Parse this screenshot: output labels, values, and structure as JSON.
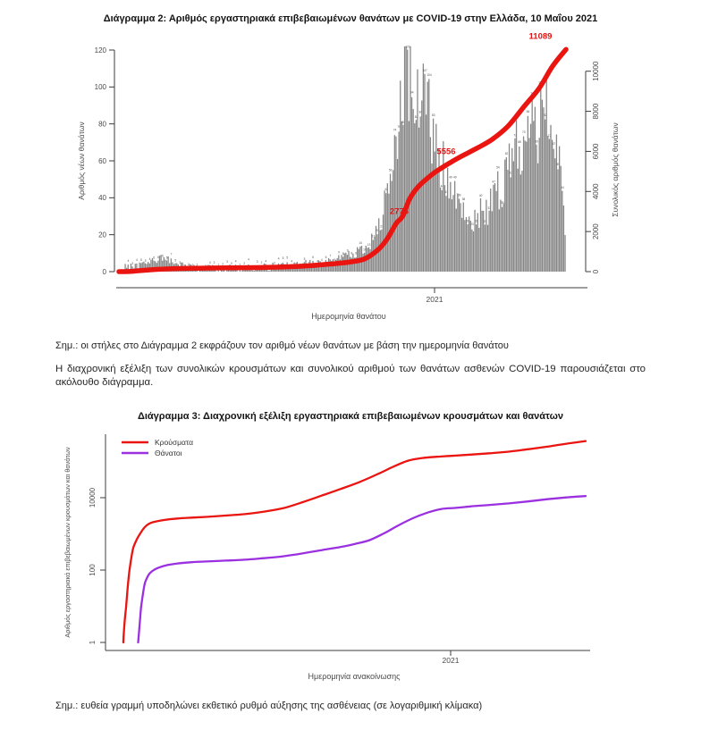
{
  "chart2": {
    "title": "Διάγραμμα 2: Αριθμός εργαστηριακά επιβεβαιωμένων θανάτων με COVID-19 στην Ελλάδα, 10 Μαΐου 2021",
    "left_axis": {
      "label": "Αριθμός νέων θανάτων",
      "ticks": [
        0,
        20,
        40,
        60,
        80,
        100,
        120
      ]
    },
    "right_axis": {
      "label": "Συνολικός αριθμός θανάτων",
      "ticks": [
        0,
        2000,
        4000,
        6000,
        8000,
        10000
      ]
    },
    "x_axis": {
      "label": "Ημερομηνία θανάτου",
      "tick_label": "2021"
    },
    "colors": {
      "bar": "#868686",
      "bar_label": "#4d4d4d",
      "line": "#ea1410",
      "annotation": "#e41312",
      "axis": "#3c3c3c",
      "tick_text": "#4a4a4a"
    },
    "chart_data": {
      "type": "bar+line",
      "x_range": "Μάρτιος 2020 – 10 Μαΐου 2021 (ανά ημέρα)",
      "bar_series": {
        "name": "Νέοι θάνατοι ανά ημερομηνία θανάτου",
        "axis": "left",
        "ylim": [
          0,
          120
        ],
        "bar_count": 312,
        "profile": [
          [
            0,
            1.5
          ],
          [
            0.04,
            3
          ],
          [
            0.07,
            6
          ],
          [
            0.1,
            7.5
          ],
          [
            0.13,
            4
          ],
          [
            0.17,
            2
          ],
          [
            0.22,
            1.5
          ],
          [
            0.28,
            2
          ],
          [
            0.33,
            2.5
          ],
          [
            0.38,
            3.5
          ],
          [
            0.43,
            4.5
          ],
          [
            0.48,
            6
          ],
          [
            0.52,
            9
          ],
          [
            0.55,
            13
          ],
          [
            0.58,
            22
          ],
          [
            0.6,
            38
          ],
          [
            0.62,
            70
          ],
          [
            0.63,
            85
          ],
          [
            0.64,
            108
          ],
          [
            0.65,
            112
          ],
          [
            0.66,
            100
          ],
          [
            0.67,
            88
          ],
          [
            0.68,
            92
          ],
          [
            0.69,
            84
          ],
          [
            0.7,
            76
          ],
          [
            0.72,
            62
          ],
          [
            0.74,
            48
          ],
          [
            0.76,
            35
          ],
          [
            0.78,
            28
          ],
          [
            0.8,
            27
          ],
          [
            0.82,
            30
          ],
          [
            0.84,
            38
          ],
          [
            0.86,
            48
          ],
          [
            0.88,
            58
          ],
          [
            0.9,
            68
          ],
          [
            0.92,
            75
          ],
          [
            0.94,
            80
          ],
          [
            0.955,
            85
          ],
          [
            0.97,
            78
          ],
          [
            0.985,
            66
          ],
          [
            0.995,
            38
          ],
          [
            1,
            18
          ]
        ]
      },
      "line_series": {
        "name": "Συνολικός αριθμός θανάτων",
        "axis": "right",
        "ylim": [
          0,
          11089
        ],
        "points": [
          [
            0,
            0
          ],
          [
            0.02,
            5
          ],
          [
            0.05,
            55
          ],
          [
            0.08,
            105
          ],
          [
            0.1,
            130
          ],
          [
            0.12,
            144
          ],
          [
            0.16,
            165
          ],
          [
            0.2,
            180
          ],
          [
            0.26,
            192
          ],
          [
            0.33,
            208
          ],
          [
            0.41,
            270
          ],
          [
            0.48,
            392
          ],
          [
            0.52,
            490
          ],
          [
            0.55,
            640
          ],
          [
            0.58,
            1100
          ],
          [
            0.6,
            1630
          ],
          [
            0.62,
            2400
          ],
          [
            0.635,
            2776
          ],
          [
            0.65,
            3620
          ],
          [
            0.67,
            4250
          ],
          [
            0.7,
            4840
          ],
          [
            0.72,
            5150
          ],
          [
            0.75,
            5556
          ],
          [
            0.77,
            5800
          ],
          [
            0.8,
            6150
          ],
          [
            0.835,
            6600
          ],
          [
            0.87,
            7250
          ],
          [
            0.906,
            8230
          ],
          [
            0.94,
            9150
          ],
          [
            0.97,
            10250
          ],
          [
            1.0,
            11089
          ]
        ]
      },
      "annotations": [
        {
          "text": "2776",
          "t": 0.635,
          "value": 2776
        },
        {
          "text": "5556",
          "t": 0.75,
          "value": 5556
        },
        {
          "text": "11089",
          "t": 0.985,
          "value": 11089
        }
      ]
    }
  },
  "notes": {
    "note2": "Σημ.: οι στήλες στο Διάγραμμα 2 εκφράζουν τον αριθμό νέων θανάτων με βάση την ημερομηνία θανάτου",
    "paragraph": "Η διαχρονική εξέλιξη των συνολικών κρουσμάτων και συνολικού αριθμού των θανάτων ασθενών COVID-19 παρουσιάζεται στο ακόλουθο διάγραμμα.",
    "note3": "Σημ.: ευθεία γραμμή υποδηλώνει εκθετικό ρυθμό αύξησης της ασθένειας (σε λογαριθμική κλίμακα)"
  },
  "chart3": {
    "title": "Διάγραμμα 3: Διαχρονική εξέλιξη εργαστηριακά επιβεβαιωμένων κρουσμάτων και θανάτων",
    "y_axis": {
      "label": "Αριθμός εργαστηριακά επιβεβαιωμένων κρουσμάτων και θανάτων",
      "scale": "log10",
      "ticks": [
        1,
        100,
        10000
      ]
    },
    "x_axis": {
      "label": "Ημερομηνία ανακοίνωσης",
      "tick_label": "2021"
    },
    "legend": [
      {
        "label": "Κρούσματα",
        "color": "#ea1410"
      },
      {
        "label": "Θάνατοι",
        "color": "#9b30e0"
      }
    ],
    "chart_data": {
      "type": "line",
      "y_scale": "log10",
      "ylim": [
        1,
        400000
      ],
      "series": [
        {
          "name": "Κρούσματα",
          "color": "#ea1410",
          "points": [
            [
              0.037,
              1
            ],
            [
              0.04,
              4
            ],
            [
              0.043,
              10
            ],
            [
              0.046,
              31
            ],
            [
              0.05,
              99
            ],
            [
              0.054,
              228
            ],
            [
              0.058,
              418
            ],
            [
              0.065,
              695
            ],
            [
              0.073,
              1061
            ],
            [
              0.082,
              1544
            ],
            [
              0.09,
              1884
            ],
            [
              0.1,
              2114
            ],
            [
              0.12,
              2401
            ],
            [
              0.15,
              2663
            ],
            [
              0.18,
              2810
            ],
            [
              0.21,
              2952
            ],
            [
              0.25,
              3203
            ],
            [
              0.29,
              3511
            ],
            [
              0.33,
              4110
            ],
            [
              0.37,
              5123
            ],
            [
              0.41,
              7472
            ],
            [
              0.45,
              11386
            ],
            [
              0.49,
              17444
            ],
            [
              0.53,
              27334
            ],
            [
              0.57,
              46892
            ],
            [
              0.6,
              72510
            ],
            [
              0.63,
              105271
            ],
            [
              0.66,
              124534
            ],
            [
              0.69,
              135456
            ],
            [
              0.72,
              142777
            ],
            [
              0.76,
              154796
            ],
            [
              0.8,
              168896
            ],
            [
              0.84,
              187000
            ],
            [
              0.88,
              218092
            ],
            [
              0.92,
              257340
            ],
            [
              0.96,
              310006
            ],
            [
              1.0,
              367218
            ]
          ]
        },
        {
          "name": "Θάνατοι",
          "color": "#9b30e0",
          "points": [
            [
              0.068,
              1
            ],
            [
              0.071,
              3
            ],
            [
              0.074,
              9
            ],
            [
              0.078,
              22
            ],
            [
              0.082,
              43
            ],
            [
              0.087,
              63
            ],
            [
              0.092,
              81
            ],
            [
              0.1,
              99
            ],
            [
              0.11,
              116
            ],
            [
              0.13,
              138
            ],
            [
              0.15,
              152
            ],
            [
              0.18,
              165
            ],
            [
              0.21,
              173
            ],
            [
              0.25,
              183
            ],
            [
              0.29,
              193
            ],
            [
              0.33,
              213
            ],
            [
              0.37,
              240
            ],
            [
              0.41,
              288
            ],
            [
              0.45,
              356
            ],
            [
              0.49,
              436
            ],
            [
              0.52,
              528
            ],
            [
              0.55,
              673
            ],
            [
              0.58,
              1035
            ],
            [
              0.61,
              1714
            ],
            [
              0.64,
              2706
            ],
            [
              0.67,
              3840
            ],
            [
              0.7,
              4881
            ],
            [
              0.73,
              5227
            ],
            [
              0.76,
              5724
            ],
            [
              0.8,
              6321
            ],
            [
              0.84,
              6963
            ],
            [
              0.88,
              7880
            ],
            [
              0.92,
              9054
            ],
            [
              0.96,
              10179
            ],
            [
              1.0,
              11089
            ]
          ]
        }
      ]
    }
  }
}
